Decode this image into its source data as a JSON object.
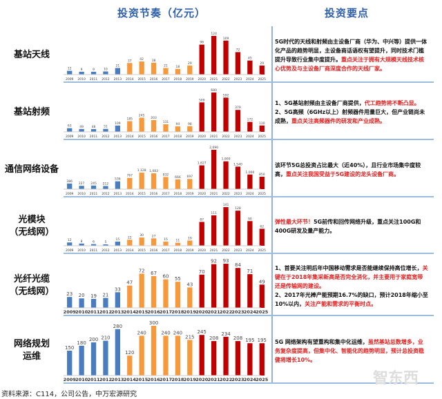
{
  "header": {
    "chart_title": "投资节奏（亿元）",
    "notes_title": "投资要点"
  },
  "colors": {
    "early": "#4a7cc0",
    "mid": "#f5993c",
    "late": "#c00000"
  },
  "chart_data": [
    {
      "type": "bar",
      "label": "基站天线",
      "categories": [
        "2009",
        "2010",
        "2011",
        "2012",
        "2013",
        "2014",
        "2015",
        "2016",
        "2017",
        "2018",
        "2019",
        "2020",
        "2021",
        "2022",
        "2023",
        "2024",
        "2025"
      ],
      "values": [
        12,
        9,
        9,
        10,
        21,
        37,
        42,
        38,
        21,
        18,
        29,
        96,
        124,
        109,
        72,
        45,
        29
      ]
    },
    {
      "type": "bar",
      "label": "基站射频",
      "categories": [
        "2009",
        "2010",
        "2011",
        "2012",
        "2013",
        "2014",
        "2015",
        "2016",
        "2017",
        "2018",
        "2019",
        "2020",
        "2021",
        "2022",
        "2023",
        "2024",
        "2025"
      ],
      "values": [
        63,
        49,
        48,
        51,
        109,
        185,
        245,
        203,
        131,
        94,
        98,
        509,
        680,
        592,
        379,
        172,
        110
      ]
    },
    {
      "type": "bar",
      "label": "通信网络设备",
      "categories": [
        "2009",
        "2010",
        "2011",
        "2012",
        "2013",
        "2014",
        "2015",
        "2016",
        "2017",
        "2018",
        "2019",
        "2020",
        "2021",
        "2022",
        "2023",
        "2024",
        "2025"
      ],
      "values": [
        386,
        227,
        245,
        212,
        536,
        767,
        1128,
        1083,
        832,
        666,
        697,
        1627,
        2690,
        1900,
        1540,
        1000,
        850
      ]
    },
    {
      "type": "bar",
      "label": "光模块\n（无线网）",
      "categories": [
        "2009",
        "2010",
        "2011",
        "2012",
        "2013",
        "2014",
        "2015",
        "2016",
        "2017",
        "2018",
        "2019",
        "2020",
        "2021",
        "2022",
        "2023",
        "2024",
        "2025"
      ],
      "values": [
        12,
        8,
        6,
        5,
        15,
        22,
        30,
        27,
        15,
        11,
        19,
        87,
        111,
        141,
        128,
        90,
        62
      ]
    },
    {
      "type": "bar",
      "label": "光纤光缆\n（无线网）",
      "categories": [
        "2009",
        "2010",
        "2011",
        "2012",
        "2013",
        "2014",
        "2015",
        "2016",
        "2017",
        "2018",
        "2019",
        "2020",
        "2021",
        "2022",
        "2023",
        "2024",
        "2025"
      ],
      "values": [
        23,
        20,
        19,
        21,
        33,
        47,
        72,
        67,
        60,
        55,
        43,
        70,
        92,
        93,
        84,
        71,
        49
      ]
    },
    {
      "type": "bar",
      "label": "网络规划\n运维",
      "categories": [
        "2009",
        "2010",
        "2011",
        "2012",
        "2013",
        "2014",
        "2015",
        "2016",
        "2017",
        "2018",
        "2019",
        "2020",
        "2021",
        "2022",
        "2023",
        "2024",
        "2025"
      ],
      "values": [
        150,
        180,
        200,
        210,
        280,
        120,
        240,
        300,
        240,
        240,
        215,
        245,
        208,
        234,
        208,
        195,
        195
      ]
    }
  ],
  "notes": [
    [
      {
        "t": "5G时代的天线和射频由主设备厂商（华为、中兴等）提供一体化产品的趋势明显，主设备商话语权有望提升，同时技术门槛提升导致行业集中度提升。"
      },
      {
        "t": "重点关注于拥有大规模天线技术核心优势及与主设备厂商深度合作的天线厂家。",
        "r": true
      }
    ],
    [
      {
        "t": "1、5G基站射频由主设备厂商提供，"
      },
      {
        "t": "代工趋势将不断凸显。",
        "r": true
      },
      {
        "t": "\n2、5G高频（6GHz以上）射频器件用量巨大，但产业链尚未成熟，"
      },
      {
        "t": "重点关注高频器件的研发和产业成熟。",
        "r": true
      }
    ],
    [
      {
        "t": "该环节5G总投资占比最大（近40%），且行业市场集中度较高，"
      },
      {
        "t": "重点关注我国受益于5G建设的龙头设备厂商。",
        "r": true
      }
    ],
    [
      {
        "t": "弹性最大环节！",
        "r": true
      },
      {
        "t": "5G前传和回传网络升级，重点关注100G和400G研发及量产能力。"
      }
    ],
    [
      {
        "t": "1、首要关注明后年中国移动需求是否能继续保持高位增长，"
      },
      {
        "t": "关键在于2018年集采新高是否完全消化，并主要用于家庭宽带还是传输网的建设。",
        "r": true
      },
      {
        "t": "\n2、2017年光棒产能预期16.7%的缺口，预计2018年缩小至10%以内，"
      },
      {
        "t": "关注产能和需求的平衡时点。",
        "r": true
      }
    ],
    [
      {
        "t": "5G 网络架构有望重构和集中化运维，"
      },
      {
        "t": "虽然基站总数增多，业务复杂度提高，但集中化、智能化的趋势明显，预计总投资稳健将增长10%。",
        "r": true
      }
    ]
  ],
  "footer": "资料来源：C114，公司公告，中万宏源研究",
  "watermark": "智东西"
}
